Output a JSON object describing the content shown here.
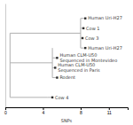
{
  "chart_data": {
    "type": "line",
    "xlabel": "SNPs",
    "xlim": [
      0,
      13
    ],
    "xticks": [
      0,
      4,
      8,
      11
    ],
    "ylim": [
      0,
      10.5
    ],
    "tick_labels": "x",
    "series": [
      {
        "type": "line",
        "color": "#b0b0b0",
        "x": [
          8.0,
          8.0,
          null,
          5.0,
          5.0,
          null,
          0.5,
          0.5,
          null,
          0.5,
          8.0,
          null,
          0.5,
          5.0,
          null,
          0.5,
          4.5,
          null,
          8.0,
          8.5,
          null,
          8.0,
          8.3,
          null,
          8.0,
          8.2,
          null,
          8.0,
          8.5,
          null,
          5.0,
          5.5,
          null,
          5.0,
          5.3,
          null,
          5.0,
          5.5,
          null,
          4.5,
          5.0
        ],
        "values": [
          6,
          9,
          null,
          3,
          6,
          null,
          1,
          7.5,
          null,
          7.5,
          7.5,
          null,
          4.5,
          4.5,
          null,
          1,
          1,
          null,
          9,
          9,
          null,
          8,
          8,
          null,
          7,
          7,
          null,
          6,
          6,
          null,
          5,
          5,
          null,
          4,
          4,
          null,
          3,
          3,
          null,
          1,
          1
        ]
      },
      {
        "type": "scatter",
        "marker": "square",
        "color": "#2d2d2d",
        "x": [
          8.5,
          8.3,
          8.2,
          8.5,
          5.5,
          5.3,
          5.5,
          5.0
        ],
        "values": [
          9,
          8,
          7,
          6,
          5,
          4,
          3,
          1
        ],
        "labels": [
          "Human Uri-H27",
          "Cow 1",
          "Cow 3",
          "Human Uri-H27",
          "Human CLM-U50\nSequenced in Montevideo",
          "Human CLM-U50\nSequenced in Paris",
          "Rodent",
          "Cow 4"
        ]
      }
    ]
  }
}
